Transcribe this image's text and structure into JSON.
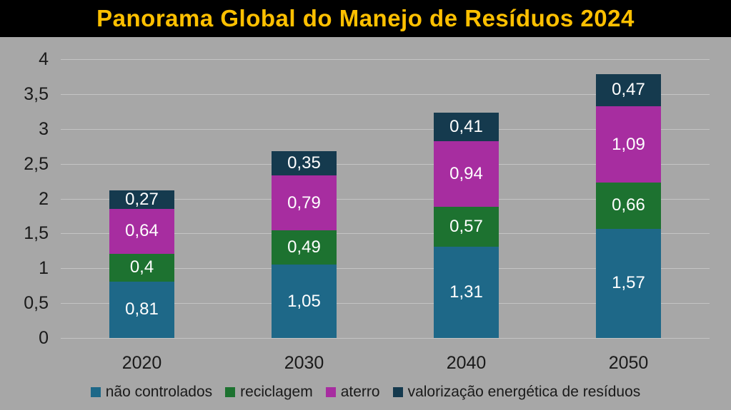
{
  "header": {
    "title": "Panorama Global do Manejo de Resíduos 2024",
    "bg_color": "#000000",
    "text_color": "#FFC000"
  },
  "chart_data": {
    "type": "bar",
    "stacked": true,
    "title": "Panorama Global do Manejo de Resíduos 2024",
    "categories": [
      "2020",
      "2030",
      "2040",
      "2050"
    ],
    "series": [
      {
        "name": "não controlados",
        "color": "#1E6888",
        "values": [
          0.81,
          1.05,
          1.31,
          1.57
        ],
        "labels": [
          "0,81",
          "1,05",
          "1,31",
          "1,57"
        ]
      },
      {
        "name": "reciclagem",
        "color": "#1D7230",
        "values": [
          0.4,
          0.49,
          0.57,
          0.66
        ],
        "labels": [
          "0,4",
          "0,49",
          "0,57",
          "0,66"
        ]
      },
      {
        "name": "aterro",
        "color": "#A72DA0",
        "values": [
          0.64,
          0.79,
          0.94,
          1.09
        ],
        "labels": [
          "0,64",
          "0,79",
          "0,94",
          "1,09"
        ]
      },
      {
        "name": "valorização energética de resíduos",
        "color": "#153A4E",
        "values": [
          0.27,
          0.35,
          0.41,
          0.47
        ],
        "labels": [
          "0,27",
          "0,35",
          "0,41",
          "0,47"
        ]
      }
    ],
    "xlabel": "",
    "ylabel": "",
    "ylim": [
      0,
      4
    ],
    "grid": true,
    "legend_position": "bottom",
    "yticks": [
      {
        "v": 0,
        "label": "0"
      },
      {
        "v": 0.5,
        "label": "0,5"
      },
      {
        "v": 1,
        "label": "1"
      },
      {
        "v": 1.5,
        "label": "1,5"
      },
      {
        "v": 2,
        "label": "2"
      },
      {
        "v": 2.5,
        "label": "2,5"
      },
      {
        "v": 3,
        "label": "3"
      },
      {
        "v": 3.5,
        "label": "3,5"
      },
      {
        "v": 4,
        "label": "4"
      }
    ],
    "colors": {
      "background": "#A7A7A7",
      "gridline": "#C4C4C4",
      "axis_text": "#1A1A1A",
      "bar_label_text": "#FFFFFF"
    }
  }
}
